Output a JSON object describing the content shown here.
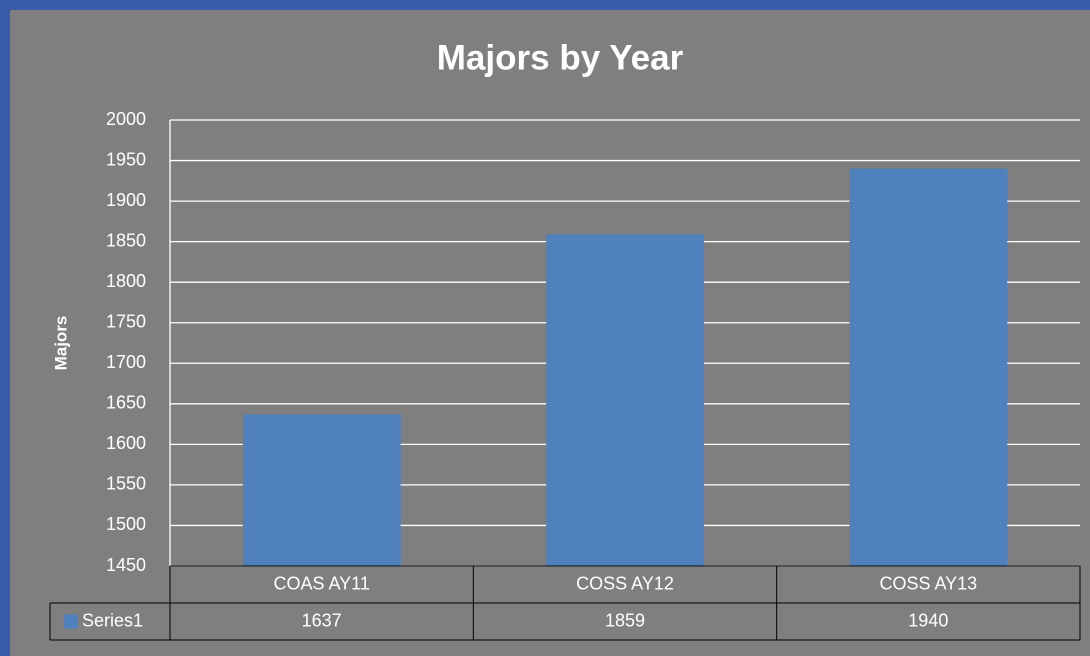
{
  "chart_data": {
    "type": "bar",
    "title": "Majors by Year",
    "ylabel": "Majors",
    "categories": [
      "COAS AY11",
      "COSS AY12",
      "COSS AY13"
    ],
    "series": [
      {
        "name": "Series1",
        "color": "#4f81bd",
        "values": [
          1637,
          1859,
          1940
        ]
      }
    ],
    "ylim": [
      1450,
      2000
    ],
    "yticks": [
      1450,
      1500,
      1550,
      1600,
      1650,
      1700,
      1750,
      1800,
      1850,
      1900,
      1950,
      2000
    ],
    "grid": true,
    "data_table": true
  }
}
